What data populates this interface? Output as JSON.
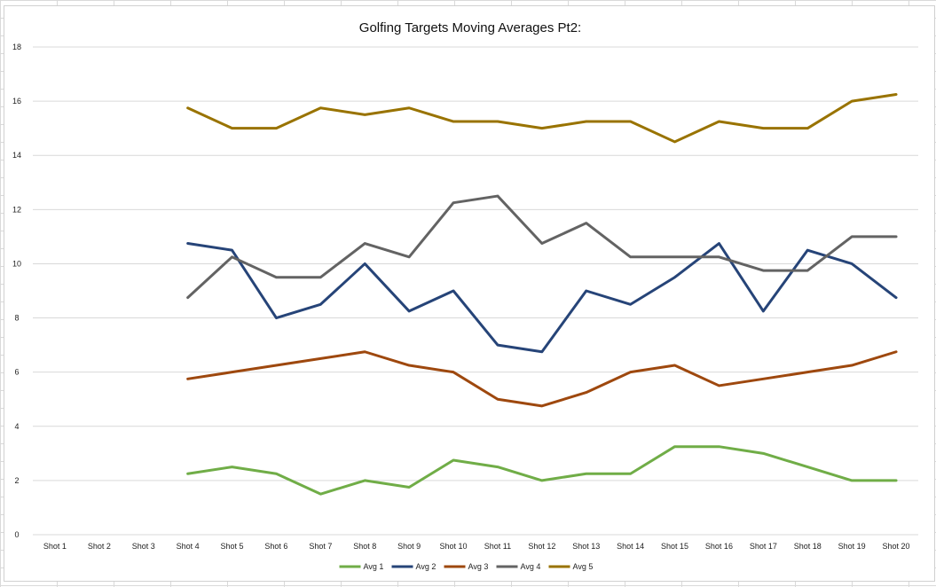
{
  "chart_data": {
    "type": "line",
    "title": "Golfing Targets Moving Averages Pt2:",
    "xlabel": "",
    "ylabel": "",
    "categories": [
      "Shot 1",
      "Shot 2",
      "Shot 3",
      "Shot 4",
      "Shot 5",
      "Shot 6",
      "Shot 7",
      "Shot 8",
      "Shot 9",
      "Shot 10",
      "Shot 11",
      "Shot 12",
      "Shot 13",
      "Shot 14",
      "Shot 15",
      "Shot 16",
      "Shot 17",
      "Shot 18",
      "Shot 19",
      "Shot 20"
    ],
    "ylim": [
      0,
      18
    ],
    "yticks": [
      0,
      2,
      4,
      6,
      8,
      10,
      12,
      14,
      16,
      18
    ],
    "grid": true,
    "legend_position": "bottom",
    "series": [
      {
        "name": "Avg 1",
        "color": "#70ad47",
        "values": [
          null,
          null,
          null,
          2.25,
          2.5,
          2.25,
          1.5,
          2,
          1.75,
          2.75,
          2.5,
          2,
          2.25,
          2.25,
          3.25,
          3.25,
          3,
          2.5,
          2,
          2
        ]
      },
      {
        "name": "Avg 2",
        "color": "#264478",
        "values": [
          null,
          null,
          null,
          10.75,
          10.5,
          8,
          8.5,
          10,
          8.25,
          9,
          7,
          6.75,
          9,
          8.5,
          9.5,
          10.75,
          8.25,
          10.5,
          10,
          8.75
        ]
      },
      {
        "name": "Avg 3",
        "color": "#9e480e",
        "values": [
          null,
          null,
          null,
          5.75,
          6,
          6.25,
          6.5,
          6.75,
          6.25,
          6,
          5,
          4.75,
          5.25,
          6,
          6.25,
          5.5,
          5.75,
          6,
          6.25,
          6.75
        ]
      },
      {
        "name": "Avg 4",
        "color": "#636363",
        "values": [
          null,
          null,
          null,
          8.75,
          10.25,
          9.5,
          9.5,
          10.75,
          10.25,
          12.25,
          12.5,
          10.75,
          11.5,
          10.25,
          10.25,
          10.25,
          9.75,
          9.75,
          11,
          11
        ]
      },
      {
        "name": "Avg 5",
        "color": "#997300",
        "values": [
          null,
          null,
          null,
          15.75,
          15,
          15,
          15.75,
          15.5,
          15.75,
          15.25,
          15.25,
          15,
          15.25,
          15.25,
          14.5,
          15.25,
          15,
          15,
          16,
          16.25
        ]
      }
    ]
  }
}
